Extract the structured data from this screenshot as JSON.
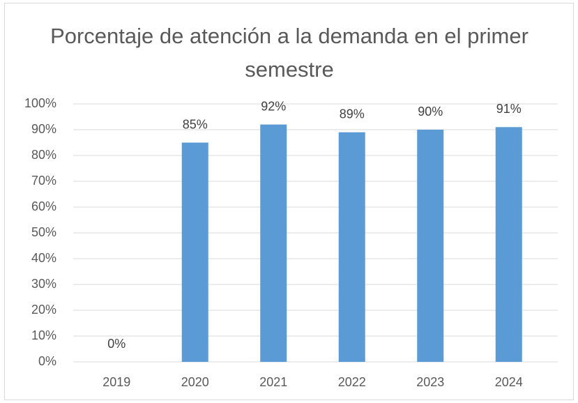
{
  "chart_data": {
    "type": "bar",
    "title": "Porcentaje de atención a la demanda en el primer semestre",
    "categories": [
      "2019",
      "2020",
      "2021",
      "2022",
      "2023",
      "2024"
    ],
    "values": [
      0,
      85,
      92,
      89,
      90,
      91
    ],
    "value_labels": [
      "0%",
      "85%",
      "92%",
      "89%",
      "90%",
      "91%"
    ],
    "color": "#5b9bd5",
    "ylim": [
      0,
      100
    ],
    "yticks": [
      {
        "value": 0,
        "label": "0%"
      },
      {
        "value": 10,
        "label": "10%"
      },
      {
        "value": 20,
        "label": "20%"
      },
      {
        "value": 30,
        "label": "30%"
      },
      {
        "value": 40,
        "label": "40%"
      },
      {
        "value": 50,
        "label": "50%"
      },
      {
        "value": 60,
        "label": "60%"
      },
      {
        "value": 70,
        "label": "70%"
      },
      {
        "value": 80,
        "label": "80%"
      },
      {
        "value": 90,
        "label": "90%"
      },
      {
        "value": 100,
        "label": "100%"
      }
    ],
    "grid": true
  }
}
